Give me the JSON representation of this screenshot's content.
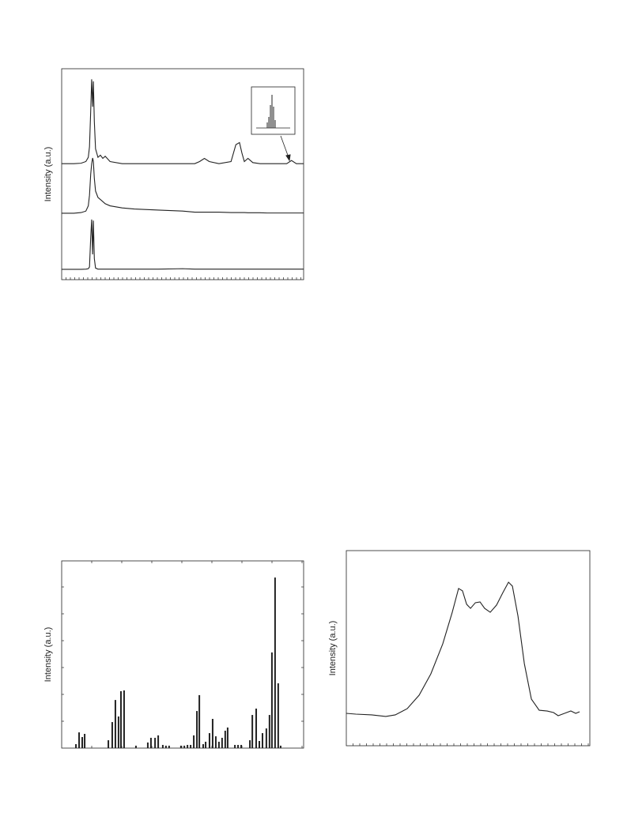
{
  "chart_data": [
    {
      "type": "line",
      "y_label": "Intensity (a.u.)",
      "xlim": [
        0,
        100
      ],
      "ylim": [
        0,
        100
      ],
      "x": [
        0,
        5,
        8,
        10,
        11,
        11.5,
        12,
        12.4,
        12.8,
        13.1,
        13.5,
        14,
        15,
        16,
        17,
        18,
        20,
        25,
        30,
        40,
        50,
        55,
        57,
        59,
        61,
        65,
        70,
        72,
        73.5,
        74.5,
        75.5,
        77,
        79,
        82,
        85,
        90,
        93,
        95,
        97,
        100
      ],
      "series": [
        {
          "color": "#222222",
          "values": [
            55,
            55,
            55.2,
            56,
            58,
            63,
            80,
            95,
            82,
            94,
            75,
            62,
            58,
            59,
            57.5,
            58.5,
            56,
            55,
            55,
            55,
            55,
            55,
            56,
            57.5,
            56,
            55,
            56,
            64,
            65,
            60,
            56,
            57.5,
            55.5,
            55,
            55,
            55,
            55,
            56.5,
            55,
            55
          ]
        },
        {
          "color": "#222222",
          "values": [
            31.5,
            31.5,
            31.8,
            32.5,
            35,
            40,
            50,
            55,
            57.7,
            56,
            48,
            42,
            39,
            38,
            37,
            36,
            35,
            34,
            33.5,
            33,
            32.5,
            32,
            32,
            32,
            32,
            32,
            31.8,
            31.8,
            31.8,
            31.8,
            31.8,
            31.7,
            31.7,
            31.7,
            31.6,
            31.6,
            31.6,
            31.6,
            31.6,
            31.6
          ]
        },
        {
          "color": "#222222",
          "values": [
            4.9,
            4.9,
            4.9,
            5,
            5.2,
            6,
            20,
            28.5,
            12,
            28,
            10,
            5.5,
            5,
            5,
            5,
            5,
            5,
            5,
            5,
            5,
            5.2,
            5,
            5,
            5,
            5,
            5,
            5,
            5,
            5,
            5,
            5,
            5,
            5,
            5,
            5,
            5,
            5,
            5,
            5,
            5
          ]
        }
      ]
    },
    {
      "type": "bar",
      "y_label": "Intensity (a.u.)",
      "xlim": [
        0,
        100
      ],
      "ylim": [
        0,
        100
      ],
      "color": "#222222",
      "x": [
        5.9,
        7.2,
        8.5,
        9.5,
        19.3,
        20.9,
        22.2,
        23.5,
        24.5,
        25.8,
        30.7,
        35.6,
        36.9,
        38.6,
        39.9,
        41.8,
        43.1,
        44.4,
        49.3,
        50.7,
        52.0,
        53.3,
        54.6,
        55.9,
        56.9,
        58.5,
        59.5,
        61.1,
        62.4,
        63.7,
        65.0,
        66.3,
        67.6,
        68.6,
        71.6,
        72.9,
        74.2,
        77.8,
        78.8,
        80.4,
        81.7,
        83.0,
        84.6,
        85.9,
        86.9,
        88.2,
        89.5,
        90.5
      ],
      "values": [
        2.1,
        8.4,
        5.9,
        7.6,
        4.2,
        13.9,
        25.7,
        16.9,
        30.4,
        30.8,
        1.3,
        3.0,
        5.5,
        5.5,
        6.8,
        1.7,
        1.3,
        1.3,
        1.3,
        1.3,
        1.7,
        1.7,
        6.8,
        19.8,
        28.3,
        2.1,
        3.4,
        8.0,
        15.6,
        6.3,
        3.4,
        5.5,
        9.3,
        11.0,
        1.7,
        1.7,
        1.7,
        4.2,
        17.7,
        21.1,
        3.8,
        8.0,
        10.5,
        17.7,
        51.1,
        91.1,
        34.6,
        1.3
      ]
    },
    {
      "type": "line",
      "y_label": "Intensity (a.u.)",
      "xlim": [
        0,
        100
      ],
      "ylim": [
        0,
        100
      ],
      "x": [
        0,
        3.9,
        10.4,
        16.2,
        20.1,
        25.0,
        29.9,
        34.7,
        39.6,
        43.5,
        46.1,
        47.7,
        49.4,
        51.0,
        53.0,
        54.9,
        56.8,
        59.1,
        61.7,
        64.3,
        66.6,
        68.2,
        70.5,
        73.1,
        76.0,
        79.2,
        82.5,
        85.1,
        87.0,
        89.6,
        92.2,
        94.2,
        95.8
      ],
      "series": [
        {
          "color": "#222222",
          "values": [
            16.6,
            16.2,
            15.8,
            15.0,
            15.8,
            19.0,
            25.9,
            36.8,
            52.2,
            68.4,
            80.6,
            79.4,
            72.5,
            70.4,
            73.3,
            73.7,
            70.4,
            68.4,
            72.1,
            78.5,
            83.8,
            81.8,
            66.4,
            42.1,
            23.9,
            18.2,
            17.8,
            17.0,
            15.4,
            16.6,
            17.8,
            16.6,
            17.4
          ]
        }
      ]
    }
  ]
}
